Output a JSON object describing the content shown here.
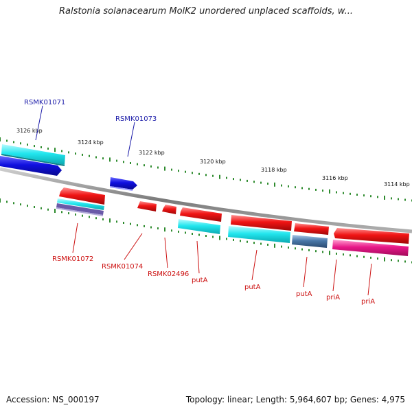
{
  "title": "Ralstonia solanacearum MolK2 unordered unplaced scaffolds, w...",
  "footer": {
    "accession": "Accession: NS_000197",
    "info": "Topology: linear; Length: 5,964,607 bp; Genes: 4,975"
  },
  "colors": {
    "backbone": "#8a8a8a",
    "tick": "#2e8b2e",
    "label_top": "#1a1aa8",
    "label_bottom": "#cc1010",
    "cyan": "#22e0e8",
    "blue": "#1414d8",
    "red": "#f01818",
    "steel": "#4a78a8",
    "magenta": "#e81888"
  },
  "scale": {
    "unit": "kbp",
    "labels": [
      "3126 kbp",
      "3124 kbp",
      "3122 kbp",
      "3120 kbp",
      "3118 kbp",
      "3116 kbp",
      "3114 kbp"
    ]
  },
  "top_labels": [
    "RSMK01071",
    "RSMK01073"
  ],
  "bottom_labels": [
    "RSMK01072",
    "RSMK01074",
    "RSMK02496",
    "putA",
    "putA",
    "putA",
    "priA",
    "priA"
  ]
}
